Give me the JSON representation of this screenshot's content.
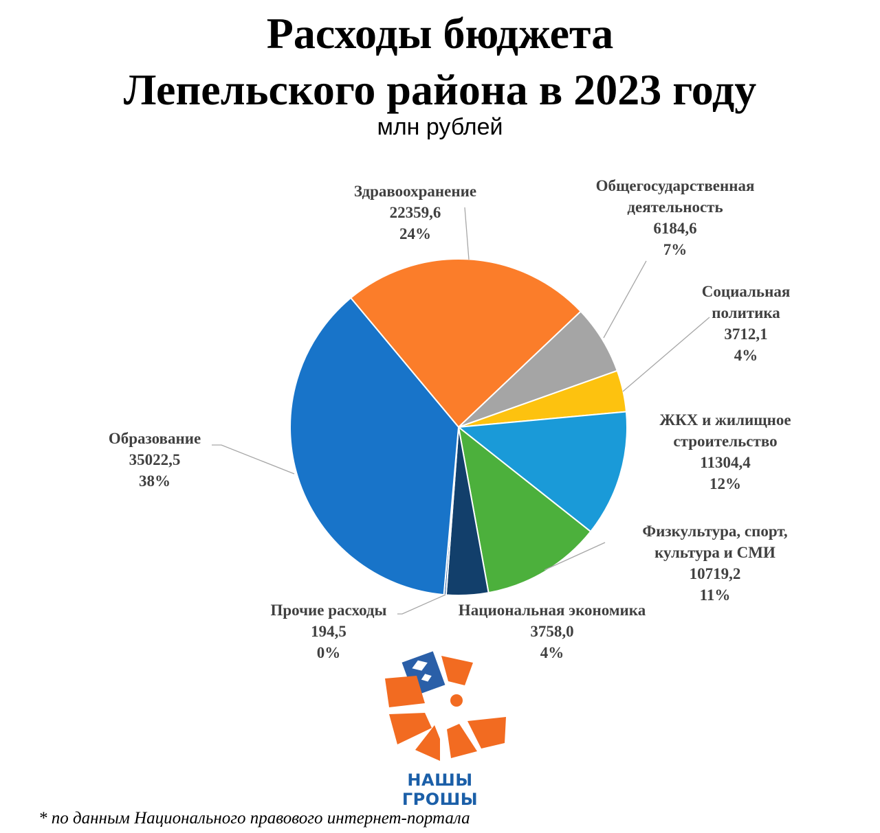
{
  "chart_data": {
    "type": "pie",
    "title": "Расходы бюджета\nЛепельского района в 2023 году",
    "subtitle": "млн рублей",
    "categories": [
      "Здравоохранение",
      "Общегосударственная\nдеятельность",
      "Социальная\nполитика",
      "ЖКХ и жилищное\nстроительство",
      "Физкультура, спорт,\nкультура и СМИ",
      "Национальная экономика",
      "Прочие расходы",
      "Образование"
    ],
    "values": [
      22359.6,
      6184.6,
      3712.1,
      11304.4,
      10719.2,
      3758.0,
      194.5,
      35022.5
    ],
    "value_labels": [
      "22359,6",
      "6184,6",
      "3712,1",
      "11304,4",
      "10719,2",
      "3758,0",
      "194,5",
      "35022,5"
    ],
    "percent_labels": [
      "24%",
      "7%",
      "4%",
      "12%",
      "11%",
      "4%",
      "0%",
      "38%"
    ],
    "colors": [
      "#fb7d2a",
      "#a5a5a5",
      "#fdc20f",
      "#1a9ad8",
      "#4cb03c",
      "#123f6b",
      "#2a5f9e",
      "#1874c9"
    ]
  },
  "logo_text": "НАШЫ ГРОШЫ",
  "footnote": "* по данным Национального правового интернет-портала"
}
